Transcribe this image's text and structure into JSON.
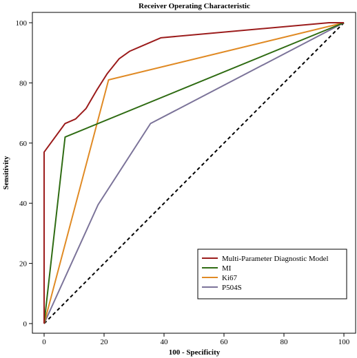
{
  "chart_data": {
    "type": "line",
    "title": "Receiver Operating Characteristic",
    "xlabel": "100 - Specificity",
    "ylabel": "Sensitivity",
    "xlim": [
      0,
      100
    ],
    "ylim": [
      0,
      100
    ],
    "xticks": [
      0,
      20,
      40,
      60,
      80,
      100
    ],
    "yticks": [
      0,
      20,
      40,
      60,
      80,
      100
    ],
    "grid": false,
    "legend_position": "bottom-right",
    "reference_line": {
      "style": "dashed",
      "color": "#000000",
      "points": [
        [
          0,
          0
        ],
        [
          100,
          100
        ]
      ]
    },
    "series": [
      {
        "name": "Multi-Parameter Diagnostic Model",
        "color": "#9B1B1B",
        "points": [
          [
            0,
            0
          ],
          [
            0,
            57
          ],
          [
            7,
            66.5
          ],
          [
            10.5,
            68
          ],
          [
            14,
            71.5
          ],
          [
            17.5,
            77.5
          ],
          [
            21,
            83
          ],
          [
            25,
            88
          ],
          [
            28.5,
            90.5
          ],
          [
            32,
            92
          ],
          [
            39,
            95
          ],
          [
            95,
            100
          ],
          [
            100,
            100
          ]
        ]
      },
      {
        "name": "MI",
        "color": "#2E6B12",
        "points": [
          [
            0,
            0
          ],
          [
            7,
            62
          ],
          [
            100,
            100
          ]
        ]
      },
      {
        "name": "Ki67",
        "color": "#E08A24",
        "points": [
          [
            0,
            0
          ],
          [
            21.5,
            81
          ],
          [
            100,
            100
          ]
        ]
      },
      {
        "name": "P504S",
        "color": "#7B7399",
        "points": [
          [
            0,
            0
          ],
          [
            18,
            39.5
          ],
          [
            35.5,
            66.5
          ],
          [
            100,
            100
          ]
        ]
      }
    ]
  }
}
